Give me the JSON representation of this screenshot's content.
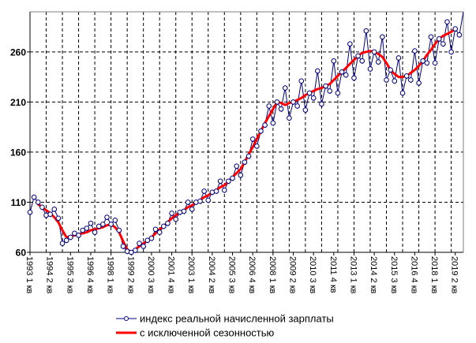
{
  "chart_data": {
    "type": "line",
    "title": "",
    "xlabel": "",
    "ylabel": "",
    "ylim": [
      60,
      300
    ],
    "yticks": [
      60,
      110,
      160,
      210,
      260
    ],
    "x_start": "1993 1 кв",
    "x_end": "2019 4 кв",
    "x_tick_labels": [
      "1993 1 кв",
      "1994 2 кв",
      "1995 3 кв",
      "1996 4 кв",
      "1998 1 кв",
      "1999 2 кв",
      "2000 3 кв",
      "2001 4 кв",
      "2003 1 кв",
      "2004 2 кв",
      "2005 3 кв",
      "2006 4 кв",
      "2008 1 кв",
      "2009 2 кв",
      "2010 3 кв",
      "2011 4 кв",
      "2013 1 кв",
      "2014 2 кв",
      "2015 3 кв",
      "2016 4 кв",
      "2018 1 кв",
      "2019 2 кв"
    ],
    "grid": true,
    "legend_position": "bottom",
    "series": [
      {
        "name": "индекс реальной начисленной зарплаты",
        "color": "#000080",
        "values": [
          100,
          115,
          110,
          105,
          97,
          98,
          103,
          94,
          69,
          72,
          75,
          79,
          77,
          82,
          84,
          89,
          80,
          86,
          88,
          95,
          88,
          92,
          82,
          66,
          61,
          60,
          62,
          69,
          66,
          72,
          74,
          83,
          80,
          86,
          89,
          99,
          93,
          100,
          101,
          110,
          103,
          110,
          111,
          121,
          112,
          120,
          121,
          131,
          122,
          131,
          134,
          146,
          137,
          150,
          156,
          173,
          166,
          181,
          187,
          206,
          189,
          210,
          203,
          224,
          194,
          210,
          206,
          231,
          202,
          219,
          214,
          241,
          208,
          226,
          221,
          251,
          219,
          240,
          237,
          268,
          234,
          256,
          251,
          281,
          243,
          260,
          250,
          275,
          232,
          242,
          231,
          254,
          219,
          236,
          232,
          261,
          229,
          251,
          249,
          275,
          249,
          273,
          268,
          290,
          260,
          283,
          277,
          301
        ]
      },
      {
        "name": "с исключенной сезонностью",
        "color": "#ff0000",
        "values": [
          null,
          null,
          108,
          105,
          102,
          99,
          95,
          90,
          82,
          75,
          76,
          77,
          78,
          79,
          80,
          82,
          83,
          84,
          85,
          87,
          88,
          85,
          80,
          71,
          63,
          60,
          63,
          66,
          69,
          72,
          75,
          79,
          83,
          86,
          90,
          94,
          97,
          100,
          102,
          105,
          107,
          110,
          112,
          115,
          117,
          120,
          122,
          125,
          127,
          131,
          135,
          139,
          143,
          150,
          158,
          165,
          173,
          181,
          189,
          196,
          203,
          210,
          209,
          207,
          209,
          210,
          212,
          214,
          217,
          219,
          221,
          223,
          224,
          226,
          228,
          232,
          236,
          240,
          244,
          248,
          252,
          256,
          259,
          260,
          261,
          260,
          258,
          255,
          249,
          242,
          238,
          235,
          235,
          236,
          239,
          242,
          246,
          251,
          257,
          262,
          268,
          273,
          276,
          278,
          280,
          283,
          null,
          null
        ]
      }
    ]
  }
}
